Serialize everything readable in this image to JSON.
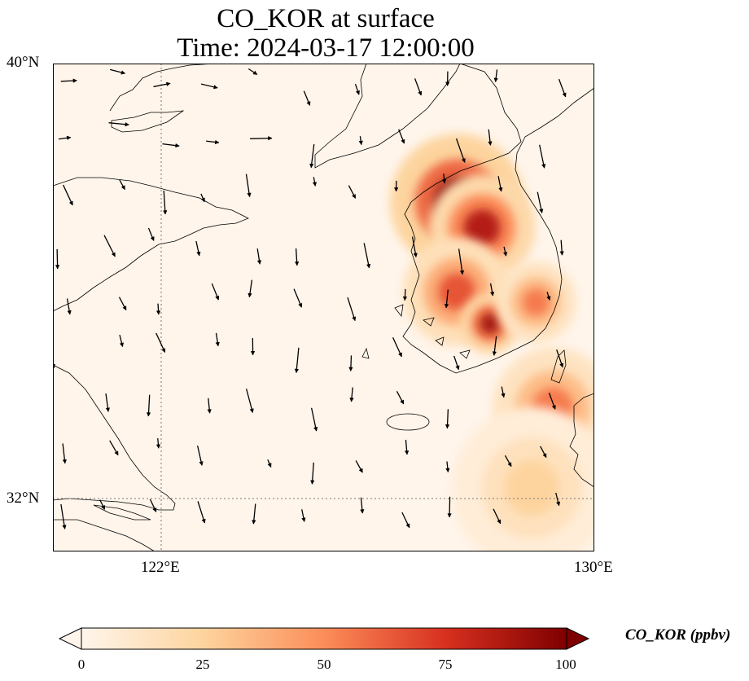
{
  "title": {
    "line1": "CO_KOR at surface",
    "line2": "Time: 2024-03-17 12:00:00"
  },
  "map": {
    "variable": "CO_KOR",
    "extent": {
      "lon_min": 117,
      "lon_max": 130,
      "lat_min": 30.8,
      "lat_max": 40
    },
    "gridlines": {
      "lon": [
        122
      ],
      "lat": [
        32
      ]
    },
    "lat_labels": [
      "40°N",
      "32°N"
    ],
    "lon_labels": [
      "122°E",
      "130°E"
    ],
    "background_color": "#fff5eb",
    "hotspots_ppbv": [
      {
        "lon": 126.7,
        "lat": 37.4,
        "value": 100,
        "spread": 1.0
      },
      {
        "lon": 127.3,
        "lat": 36.9,
        "value": 85,
        "spread": 0.8
      },
      {
        "lon": 126.7,
        "lat": 35.7,
        "value": 65,
        "spread": 0.8
      },
      {
        "lon": 127.5,
        "lat": 35.1,
        "value": 90,
        "spread": 0.45
      },
      {
        "lon": 128.6,
        "lat": 35.5,
        "value": 55,
        "spread": 0.6
      },
      {
        "lon": 129.0,
        "lat": 33.5,
        "value": 55,
        "spread": 0.9
      },
      {
        "lon": 128.5,
        "lat": 32.0,
        "value": 25,
        "spread": 1.2
      }
    ],
    "wind_direction": "north-northwest"
  },
  "colorbar": {
    "label": "CO_KOR (ppbv)",
    "ticks": [
      "0",
      "25",
      "50",
      "75",
      "100"
    ],
    "min": 0,
    "max": 100,
    "colors": [
      "#fff5eb",
      "#fdd49e",
      "#fc8d59",
      "#d7301f",
      "#7f0000"
    ]
  }
}
